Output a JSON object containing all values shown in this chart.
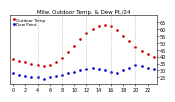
{
  "title": "Milw. Outdoor Temp. & Dew Pt./24",
  "temp_hours": [
    0,
    1,
    2,
    3,
    4,
    5,
    6,
    7,
    8,
    9,
    10,
    11,
    12,
    13,
    14,
    15,
    16,
    17,
    18,
    19,
    20,
    21,
    22,
    23
  ],
  "temp_values": [
    38,
    37,
    36,
    35,
    34,
    33,
    34,
    36,
    39,
    43,
    48,
    53,
    57,
    60,
    62,
    63,
    62,
    59,
    55,
    51,
    47,
    44,
    42,
    40
  ],
  "dew_hours": [
    0,
    1,
    2,
    3,
    4,
    5,
    6,
    7,
    8,
    9,
    10,
    11,
    12,
    13,
    14,
    15,
    16,
    17,
    18,
    19,
    20,
    21,
    22,
    23
  ],
  "dew_values": [
    28,
    27,
    26,
    25,
    25,
    24,
    25,
    26,
    27,
    28,
    29,
    30,
    31,
    32,
    31,
    30,
    29,
    28,
    30,
    32,
    34,
    33,
    32,
    31
  ],
  "temp_color": "#cc0000",
  "dew_color": "#0000cc",
  "grid_color": "#aaaaaa",
  "bg_color": "#ffffff",
  "ylim": [
    20,
    70
  ],
  "yticks": [
    25,
    30,
    35,
    40,
    45,
    50,
    55,
    60,
    65
  ],
  "ytick_labels": [
    "25",
    "30",
    "35",
    "40",
    "45",
    "50",
    "55",
    "60",
    "65"
  ],
  "xtick_positions": [
    0,
    2,
    4,
    6,
    8,
    10,
    12,
    14,
    16,
    18,
    20,
    22
  ],
  "xtick_labels": [
    "0",
    "2",
    "4",
    "6",
    "8",
    "10",
    "12",
    "14",
    "16",
    "18",
    "20",
    "22"
  ],
  "vgrid_positions": [
    4,
    8,
    12,
    16,
    20
  ],
  "marker_size": 1.8,
  "title_fontsize": 4.0,
  "tick_fontsize": 3.5,
  "legend_fontsize": 3.0,
  "legend_labels": [
    "Outdoor Temp",
    "Dew Point"
  ]
}
